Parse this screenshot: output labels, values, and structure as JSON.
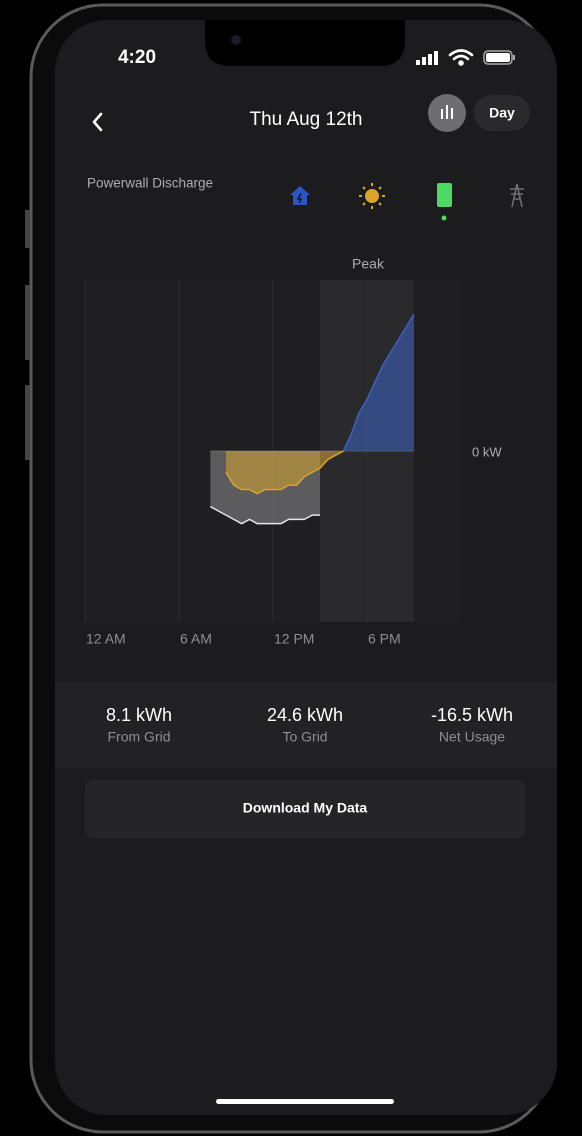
{
  "status_bar": {
    "time": "4:20"
  },
  "header": {
    "title": "Thu Aug 12th",
    "range": "Day"
  },
  "chart_data": {
    "type": "area",
    "title": "Powerwall Discharge",
    "annotation": "Peak",
    "peak": [
      15,
      21
    ],
    "xlim": [
      0,
      24
    ],
    "xticks": [
      {
        "value": 0,
        "label": "12 AM"
      },
      {
        "value": 6,
        "label": "6 AM"
      },
      {
        "value": 12,
        "label": "12 PM"
      },
      {
        "value": 18,
        "label": "6 PM"
      }
    ],
    "ylim": [
      -4,
      4
    ],
    "yticks": [
      {
        "value": 0,
        "label": "0 kW"
      }
    ],
    "x": [
      7.5,
      8,
      8.5,
      9,
      9.5,
      10,
      10.5,
      11,
      11.5,
      12,
      12.5,
      13,
      13.5,
      14,
      14.5,
      15,
      15.5,
      16,
      16.5,
      17,
      17.5,
      18,
      18.5,
      19,
      19.5,
      20,
      20.5,
      21
    ],
    "series": [
      {
        "color": "#8e8e93",
        "values": [
          null,
          -1.3,
          -1.4,
          -1.5,
          -1.6,
          -1.7,
          -1.6,
          -1.7,
          -1.7,
          -1.7,
          -1.7,
          -1.6,
          -1.6,
          -1.6,
          -1.5,
          -1.5,
          null,
          null,
          null,
          null,
          null,
          null,
          null,
          null,
          null,
          null,
          null,
          null
        ]
      },
      {
        "color": "#d9a52b",
        "values": [
          null,
          null,
          null,
          -0.5,
          -0.8,
          -0.9,
          -0.9,
          -1.0,
          -0.9,
          -0.9,
          -0.9,
          -0.8,
          -0.8,
          -0.6,
          -0.5,
          -0.4,
          -0.2,
          -0.1,
          0,
          null,
          null,
          null,
          null,
          null,
          null,
          null,
          null,
          null
        ]
      },
      {
        "color": "#3b63c4",
        "values": [
          null,
          null,
          null,
          null,
          null,
          null,
          null,
          null,
          null,
          null,
          null,
          null,
          null,
          null,
          null,
          null,
          null,
          null,
          0,
          0.4,
          0.9,
          1.2,
          1.6,
          2.0,
          2.3,
          2.6,
          2.9,
          3.2
        ]
      }
    ]
  },
  "stats": [
    {
      "value": "8.1 kWh",
      "label": "From Grid"
    },
    {
      "value": "24.6 kWh",
      "label": "To Grid"
    },
    {
      "value": "-16.5 kWh",
      "label": "Net Usage"
    }
  ],
  "button": "Download My Data"
}
